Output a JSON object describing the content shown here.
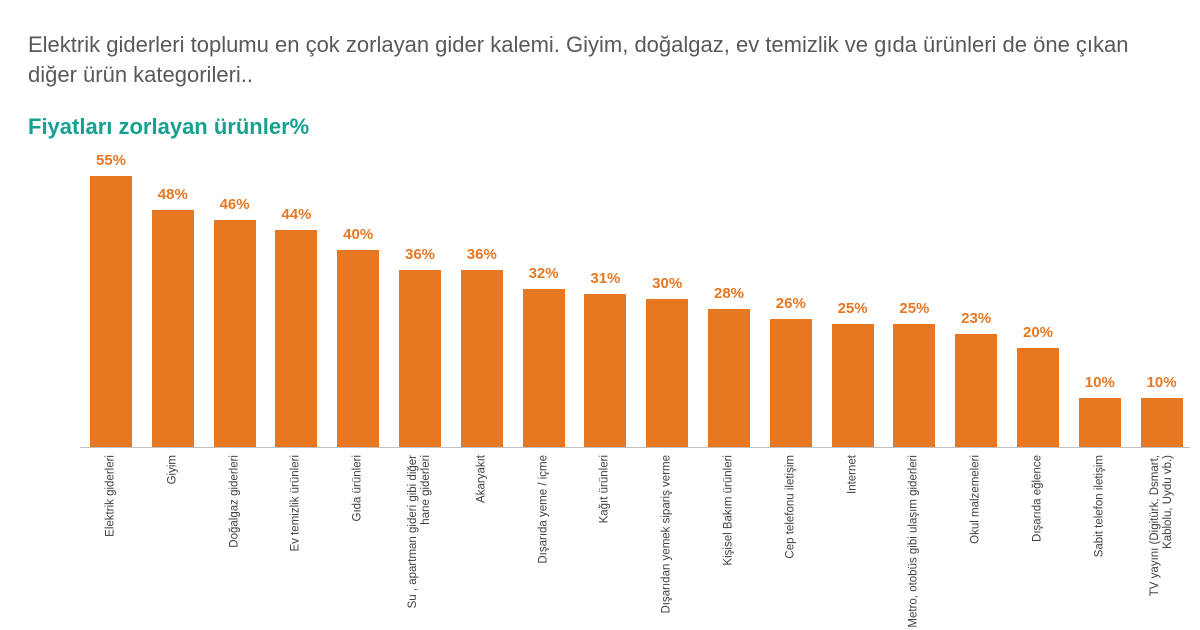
{
  "heading": "Elektrik giderleri toplumu en çok zorlayan gider kalemi. Giyim, doğalgaz, ev temizlik ve gıda ürünleri de öne çıkan diğer ürün kategorileri..",
  "chart_data": {
    "type": "bar",
    "title": "Fiyatları zorlayan ürünler%",
    "color": "#e87722",
    "categories": [
      "Elektrik giderleri",
      "Giyim",
      "Doğalgaz giderleri",
      "Ev temizlik ürünleri",
      "Gıda ürünleri",
      "Su , apartman gideri gibi diğer hane giderleri",
      "Akaryakıt",
      "Dışarıda yeme / içme",
      "Kağıt ürünleri",
      "Dışarıdan yemek sipariş verme",
      "Kişisel Bakım ürünleri",
      "Cep telefonu iletişim",
      "Internet",
      "Metro, otobüs gibi ulaşım giderleri",
      "Okul malzemeleri",
      "Dışarıda eğlence",
      "Sabit telefon iletişim",
      "TV yayını (Digitürk, Dsmart, Kablolu, Uydu vb.)"
    ],
    "values": [
      55,
      48,
      46,
      44,
      40,
      36,
      36,
      32,
      31,
      30,
      28,
      26,
      25,
      25,
      23,
      20,
      10,
      10
    ],
    "value_labels": [
      "55%",
      "48%",
      "46%",
      "44%",
      "40%",
      "36%",
      "36%",
      "32%",
      "31%",
      "30%",
      "28%",
      "26%",
      "25%",
      "25%",
      "23%",
      "20%",
      "10%",
      "10%"
    ]
  }
}
